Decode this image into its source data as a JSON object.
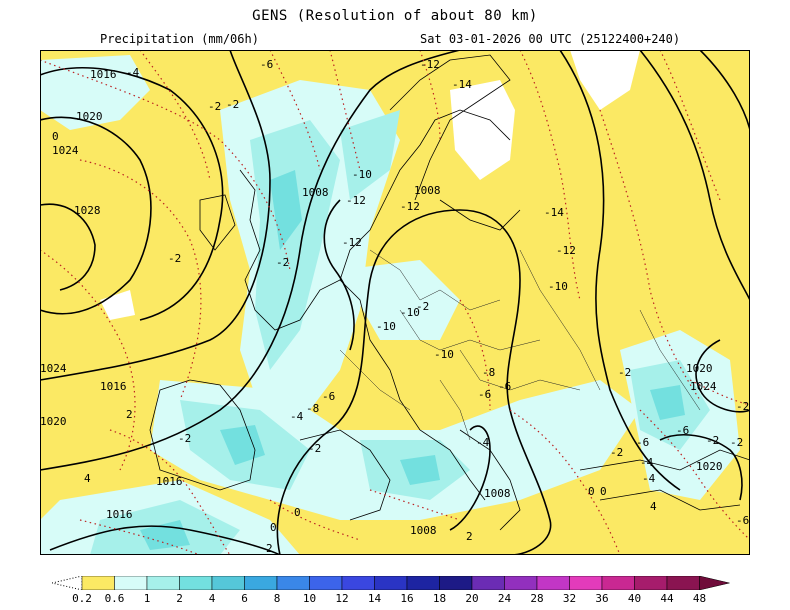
{
  "header": {
    "title": "GENS (Resolution of about 80 km)",
    "variable": "Precipitation (mm/06h)",
    "valid_time": "Sat 03-01-2026 00 UTC (25122400+240)"
  },
  "colorbar": {
    "labels": [
      "0.2",
      "0.6",
      "1",
      "2",
      "4",
      "6",
      "8",
      "10",
      "12",
      "14",
      "16",
      "18",
      "20",
      "24",
      "28",
      "32",
      "36",
      "40",
      "44",
      "48"
    ],
    "colors": [
      "#fbe964",
      "#d7fcf8",
      "#a6f0ea",
      "#73e0df",
      "#55c7d9",
      "#3aa8e0",
      "#3a87e8",
      "#3c64ea",
      "#3a47e0",
      "#2a34c4",
      "#1d24a2",
      "#1d1a86",
      "#6b2cb4",
      "#9230be",
      "#c236c6",
      "#e33bbb",
      "#c92892",
      "#a61c6c",
      "#8a1451",
      "#6f0c3a"
    ]
  },
  "map": {
    "isobar_labels": [
      "1016",
      "1020",
      "1024",
      "1028",
      "1008",
      "1008",
      "1008",
      "1016",
      "1016",
      "1016",
      "1008",
      "1020",
      "1024",
      "1024",
      "1020",
      "1020"
    ],
    "temp_labels": [
      "-4",
      "-6",
      "-12",
      "-14",
      "-2",
      "-10",
      "-12",
      "-12",
      "-12",
      "-14",
      "-12",
      "-10",
      "-10",
      "-10",
      "-10",
      "-8",
      "-6",
      "-6",
      "-6",
      "-8",
      "-4",
      "-2",
      "-2",
      "-2",
      "-2",
      "-2",
      "-4",
      "-6",
      "-4",
      "-6",
      "-2",
      "-4",
      "-2",
      "-2",
      "0",
      "0",
      "0",
      "0",
      "0",
      "2",
      "2",
      "4",
      "4",
      "-2",
      "-2",
      "-2",
      "2",
      "-6"
    ]
  }
}
